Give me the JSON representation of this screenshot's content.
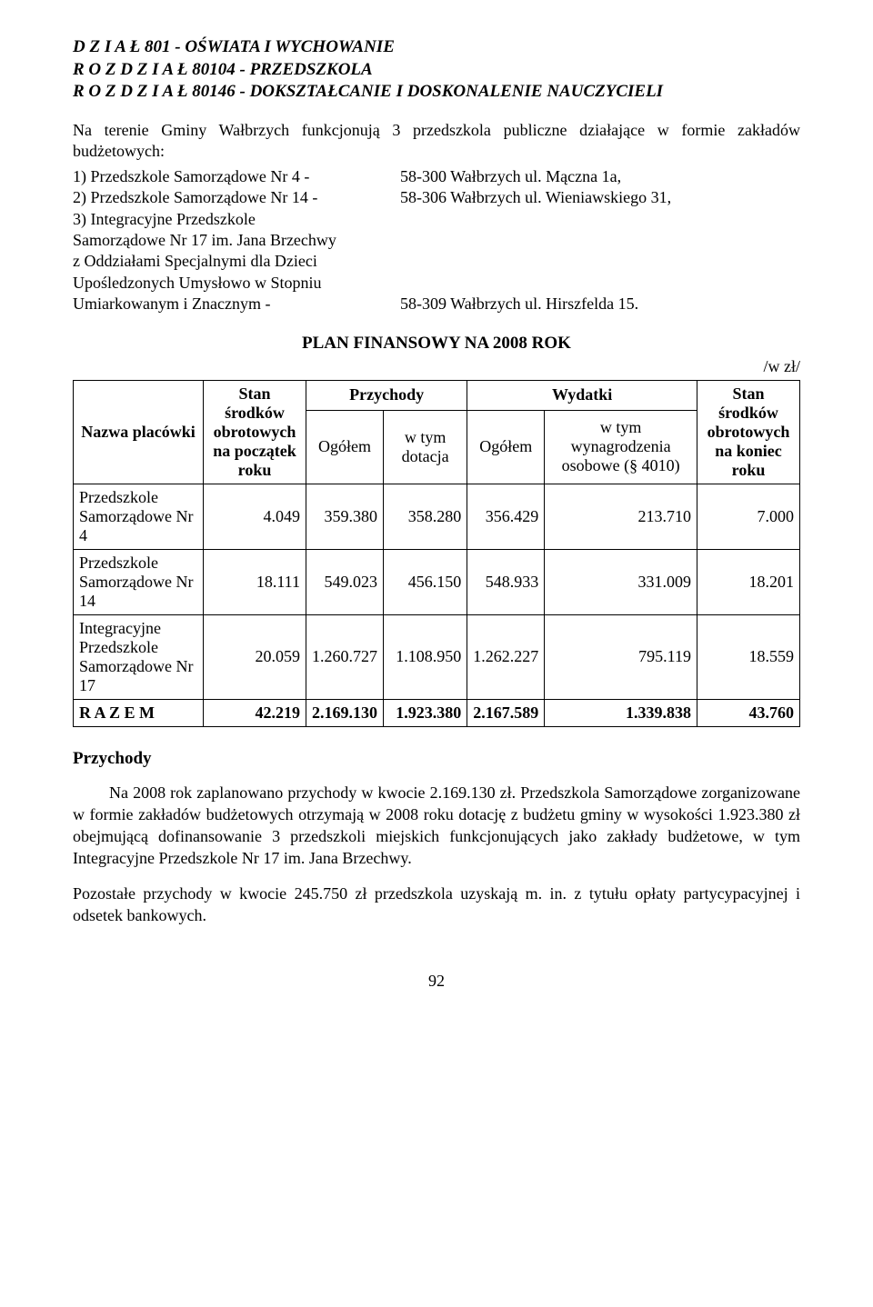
{
  "headings": {
    "dzial": "D Z I A Ł   801   - OŚWIATA I WYCHOWANIE",
    "rozdzial1": "R O Z D Z I A Ł   80104   -   PRZEDSZKOLA",
    "rozdzial2": "R O Z D Z I A Ł   80146   -   DOKSZTAŁCANIE I DOSKONALENIE NAUCZYCIELI"
  },
  "intro": "Na terenie Gminy Wałbrzych funkcjonują 3 przedszkola publiczne działające w formie zakładów budżetowych:",
  "items": {
    "i1_left": "1) Przedszkole Samorządowe Nr 4     -",
    "i1_right": "58-300 Wałbrzych ul. Mączna 1a,",
    "i2_left": "2) Przedszkole Samorządowe Nr 14   -",
    "i2_right": "58-306 Wałbrzych ul. Wieniawskiego 31,",
    "i3_left": "3) Integracyjne Przedszkole",
    "i3_2": "Samorządowe Nr 17 im. Jana Brzechwy",
    "i3_3": "z Oddziałami Specjalnymi dla Dzieci",
    "i3_4": "Upośledzonych Umysłowo w Stopniu",
    "i3_5_left": "Umiarkowanym i Znacznym             -",
    "i3_5_right": "58-309 Wałbrzych ul. Hirszfelda 15."
  },
  "plan_title": "PLAN   FINANSOWY NA 2008 ROK",
  "unit": "/w zł/",
  "table": {
    "h_nazwa": "Nazwa placówki",
    "h_stan_pocz": "Stan środków obrotowych na początek roku",
    "h_przychody": "Przychody",
    "h_wydatki": "Wydatki",
    "h_stan_kon": "Stan środków obrotowych na koniec roku",
    "h_ogolem": "Ogółem",
    "h_dotacja": "w tym dotacja",
    "h_wynagr": "w tym wynagrodzenia osobowe (§ 4010)",
    "rows": [
      {
        "name": "Przedszkole Samorządowe Nr 4",
        "stan_p": "4.049",
        "p_og": "359.380",
        "p_dot": "358.280",
        "w_og": "356.429",
        "w_wyn": "213.710",
        "stan_k": "7.000"
      },
      {
        "name": "Przedszkole Samorządowe Nr 14",
        "stan_p": "18.111",
        "p_og": "549.023",
        "p_dot": "456.150",
        "w_og": "548.933",
        "w_wyn": "331.009",
        "stan_k": "18.201"
      },
      {
        "name": "Integracyjne Przedszkole Samorządowe Nr 17",
        "stan_p": "20.059",
        "p_og": "1.260.727",
        "p_dot": "1.108.950",
        "w_og": "1.262.227",
        "w_wyn": "795.119",
        "stan_k": "18.559"
      }
    ],
    "total": {
      "name": "R A Z E M",
      "stan_p": "42.219",
      "p_og": "2.169.130",
      "p_dot": "1.923.380",
      "w_og": "2.167.589",
      "w_wyn": "1.339.838",
      "stan_k": "43.760"
    }
  },
  "przychody_head": "Przychody",
  "para1": "Na 2008 rok zaplanowano przychody w kwocie 2.169.130 zł. Przedszkola Samorządowe zorganizowane w formie zakładów budżetowych otrzymają w 2008 roku dotację z budżetu gminy w wysokości 1.923.380 zł obejmującą dofinansowanie 3 przedszkoli miejskich funkcjonujących jako zakłady budżetowe, w tym Integracyjne Przedszkole Nr 17 im. Jana Brzechwy.",
  "para2": "Pozostałe przychody w kwocie 245.750 zł przedszkola uzyskają m. in. z tytułu opłaty partycypacyjnej i odsetek bankowych.",
  "page_number": "92"
}
